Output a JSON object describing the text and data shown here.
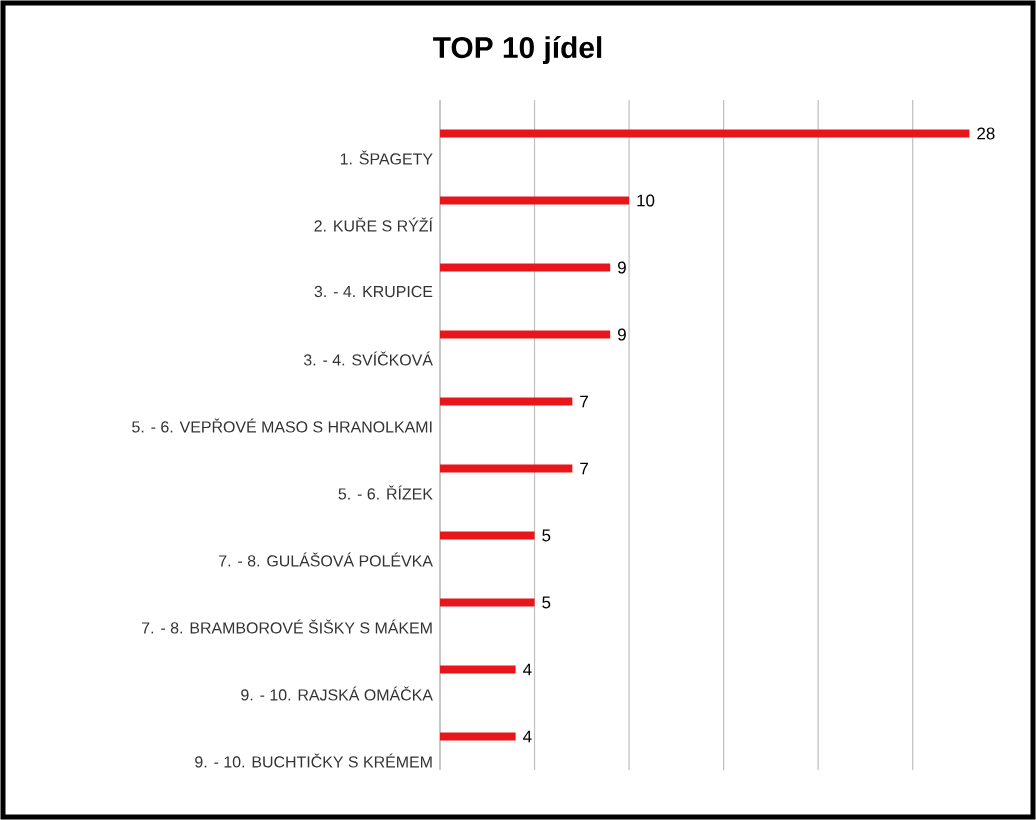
{
  "chart_data": {
    "type": "bar",
    "orientation": "horizontal",
    "title": "TOP 10 jídel",
    "categories": [
      "1. ŠPAGETY",
      "2. KUŘE S RÝŽÍ",
      "3. - 4. KRUPICE",
      "3. - 4. SVÍČKOVÁ",
      "5. - 6. VEPŘOVÉ MASO S HRANOLKAMI",
      "5. - 6. ŘÍZEK",
      "7. - 8. GULÁŠOVÁ POLÉVKA",
      "7. - 8. BRAMBOROVÉ ŠIŠKY S MÁKEM",
      "9. - 10. RAJSKÁ OMÁČKA",
      "9. - 10. BUCHTIČKY S KRÉMEM"
    ],
    "values": [
      28,
      10,
      9,
      9,
      7,
      7,
      5,
      5,
      4,
      4
    ],
    "color": "#e8161b",
    "data_labels": true,
    "grid": "x",
    "tick_labels": "y"
  }
}
